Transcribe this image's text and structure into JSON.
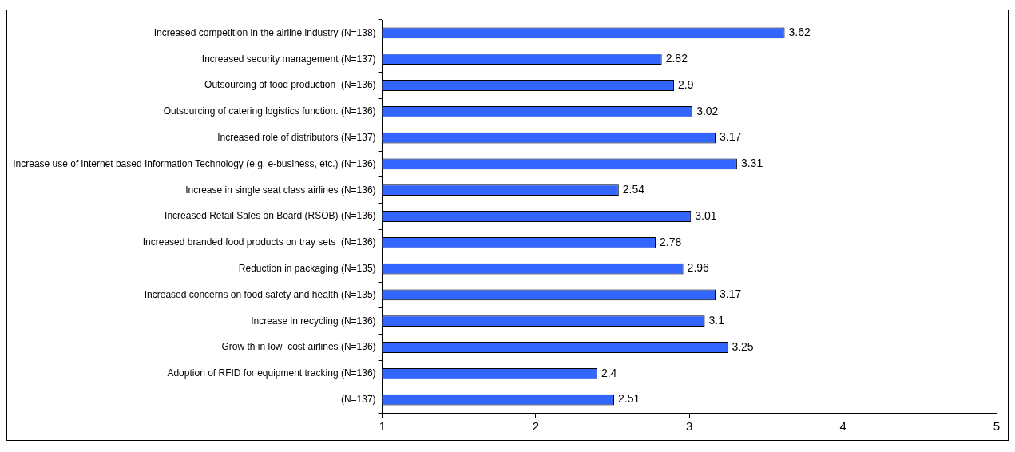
{
  "chart_data": {
    "type": "bar",
    "orientation": "horizontal",
    "categories": [
      "Increased competition in the airline industry (N=138)",
      "Increased security management (N=137)",
      "Outsourcing of food production  (N=136)",
      "Outsourcing of catering logistics function. (N=136)",
      "Increased role of distributors (N=137)",
      "Increase use of internet based Information Technology (e.g. e-business, etc.) (N=136)",
      "Increase in single seat class airlines (N=136)",
      "Increased Retail Sales on Board (RSOB) (N=136)",
      "Increased branded food products on tray sets  (N=136)",
      "Reduction in packaging (N=135)",
      "Increased concerns on food safety and health (N=135)",
      "Increase in recycling (N=136)",
      "Grow th in low  cost airlines (N=136)",
      "Adoption of RFID for equipment tracking (N=136)",
      "(N=137)"
    ],
    "values": [
      3.62,
      2.82,
      2.9,
      3.02,
      3.17,
      3.31,
      2.54,
      3.01,
      2.78,
      2.96,
      3.17,
      3.1,
      3.25,
      2.4,
      2.51
    ],
    "color": "#3366ff",
    "xlim": [
      1,
      5
    ],
    "xticks": [
      1,
      2,
      3,
      4,
      5
    ],
    "grid": false,
    "data_labels": true
  }
}
